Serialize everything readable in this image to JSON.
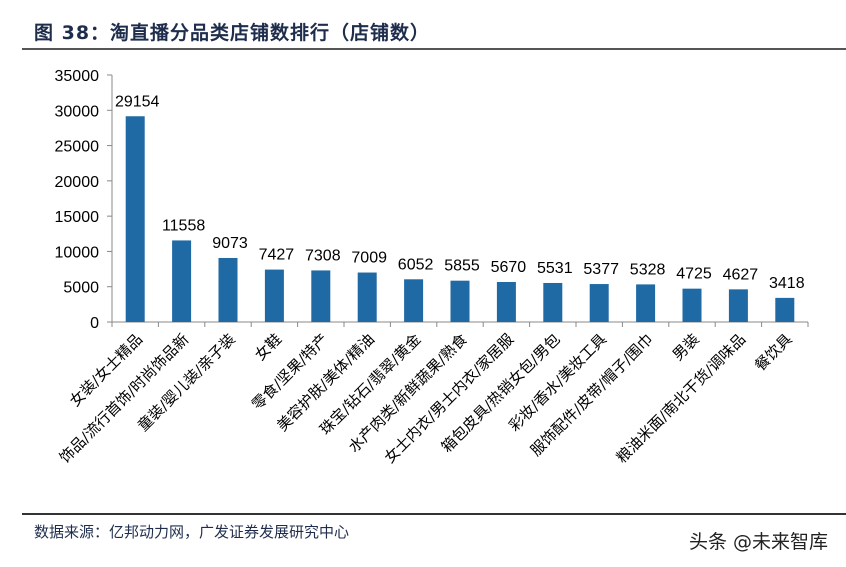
{
  "title": "图 38：淘直播分品类店铺数排行（店铺数）",
  "source": "数据来源：亿邦动力网，广发证券发展研究中心",
  "watermark": "头条 @未来智库",
  "chart_data": {
    "type": "bar",
    "title": "",
    "xlabel": "",
    "ylabel": "",
    "ylim": [
      0,
      35000
    ],
    "yticks": [
      0,
      5000,
      10000,
      15000,
      20000,
      25000,
      30000,
      35000
    ],
    "grid": false,
    "bar_color": "#1f6aa5",
    "categories": [
      "女装/女士精品",
      "饰品/流行首饰/时尚饰品新",
      "童装/婴儿装/亲子装",
      "女鞋",
      "零食/坚果/特产",
      "美容护肤/美体/精油",
      "珠宝/钻石/翡翠/黄金",
      "水产肉类/新鲜蔬果/熟食",
      "女士内衣/男士内衣/家居服",
      "箱包皮具/热销女包/男包",
      "彩妆/香水/美妆工具",
      "服饰配件/皮带/帽子/围巾",
      "男装",
      "粮油米面/南北干货/调味品",
      "餐饮具"
    ],
    "values": [
      29154,
      11558,
      9073,
      7427,
      7308,
      7009,
      6052,
      5855,
      5670,
      5531,
      5377,
      5328,
      4725,
      4627,
      3418
    ]
  }
}
